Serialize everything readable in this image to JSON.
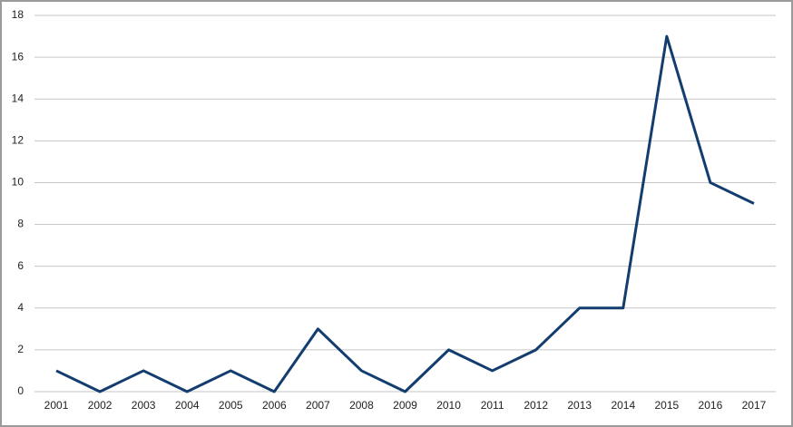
{
  "chart_data": {
    "type": "line",
    "categories": [
      "2001",
      "2002",
      "2003",
      "2004",
      "2005",
      "2006",
      "2007",
      "2008",
      "2009",
      "2010",
      "2011",
      "2012",
      "2013",
      "2014",
      "2015",
      "2016",
      "2017"
    ],
    "values": [
      1,
      0,
      1,
      0,
      1,
      0,
      3,
      1,
      0,
      2,
      1,
      2,
      4,
      4,
      17,
      10,
      9
    ],
    "color": "#123d6e",
    "ylim": [
      0,
      18
    ],
    "yticks": [
      0,
      2,
      4,
      6,
      8,
      10,
      12,
      14,
      16,
      18
    ],
    "grid": true
  }
}
